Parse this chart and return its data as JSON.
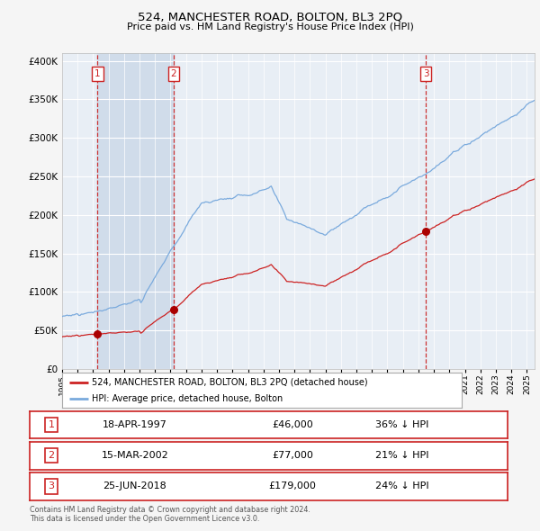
{
  "title": "524, MANCHESTER ROAD, BOLTON, BL3 2PQ",
  "subtitle": "Price paid vs. HM Land Registry's House Price Index (HPI)",
  "bg_color": "#f5f5f5",
  "plot_bg_color": "#e8eef5",
  "shaded_region": [
    1997.29,
    2002.2
  ],
  "shaded_color": "#d0dcea",
  "vline_dates": [
    1997.29,
    2002.2,
    2018.48
  ],
  "vline_labels": [
    "1",
    "2",
    "3"
  ],
  "sale_dates": [
    1997.29,
    2002.2,
    2018.48
  ],
  "sale_prices": [
    46000,
    77000,
    179000
  ],
  "hpi_line_color": "#7aaadd",
  "red_line_color": "#cc2222",
  "sale_dot_color": "#aa0000",
  "legend_line1": "524, MANCHESTER ROAD, BOLTON, BL3 2PQ (detached house)",
  "legend_line2": "HPI: Average price, detached house, Bolton",
  "table_rows": [
    {
      "num": "1",
      "date": "18-APR-1997",
      "price": "£46,000",
      "hpi": "36% ↓ HPI"
    },
    {
      "num": "2",
      "date": "15-MAR-2002",
      "price": "£77,000",
      "hpi": "21% ↓ HPI"
    },
    {
      "num": "3",
      "date": "25-JUN-2018",
      "price": "£179,000",
      "hpi": "24% ↓ HPI"
    }
  ],
  "footer": "Contains HM Land Registry data © Crown copyright and database right 2024.\nThis data is licensed under the Open Government Licence v3.0.",
  "ylim": [
    0,
    410000
  ],
  "xlim": [
    1995.0,
    2025.5
  ],
  "yticks": [
    0,
    50000,
    100000,
    150000,
    200000,
    250000,
    300000,
    350000,
    400000
  ]
}
